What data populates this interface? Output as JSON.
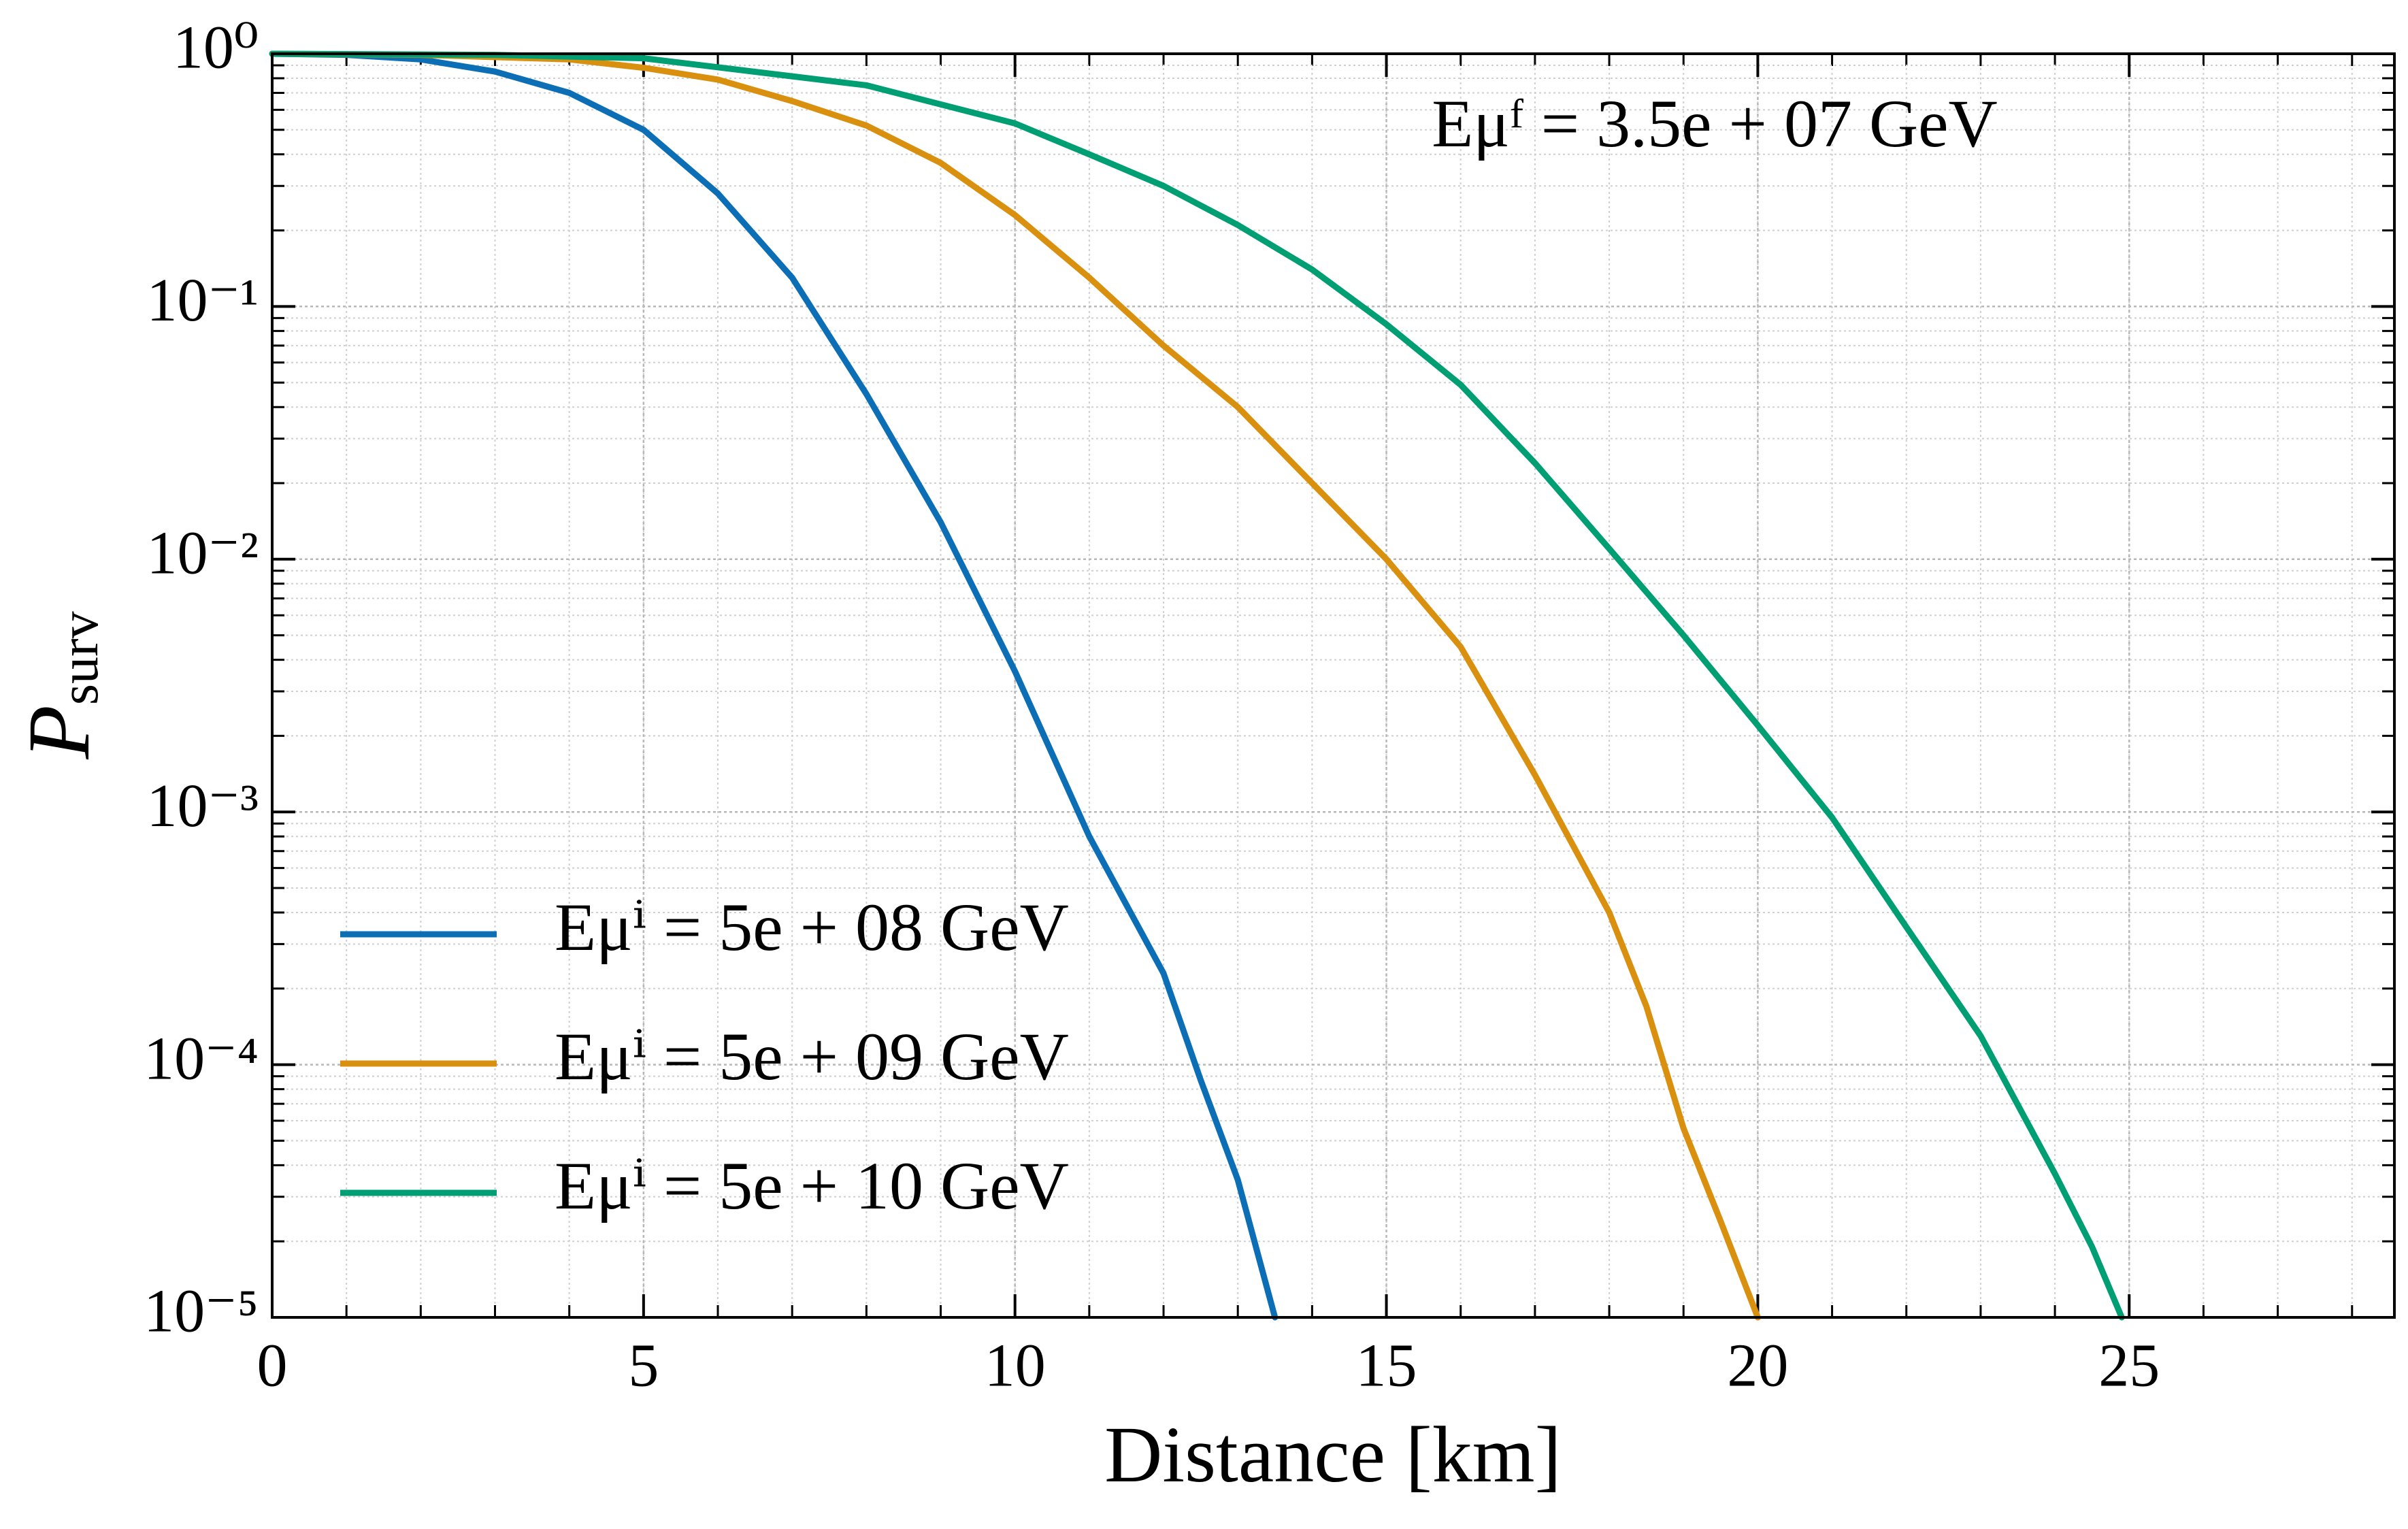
{
  "chart_data": {
    "type": "line",
    "annotation": "Eμᶠ = 3.5e + 07 GeV",
    "xlabel": "Distance [km]",
    "ylabel": "Psurv",
    "xlim": [
      0,
      28.57
    ],
    "xticks": [
      0,
      5,
      10,
      15,
      20,
      25
    ],
    "ylim": [
      1e-05,
      1
    ],
    "yticks": [
      {
        "value": 1,
        "label": "10⁰"
      },
      {
        "value": 0.1,
        "label": "10⁻¹"
      },
      {
        "value": 0.01,
        "label": "10⁻²"
      },
      {
        "value": 0.001,
        "label": "10⁻³"
      },
      {
        "value": 0.0001,
        "label": "10⁻⁴"
      },
      {
        "value": 1e-05,
        "label": "10⁻⁵"
      }
    ],
    "yscale": "log",
    "grid": true,
    "minor_grid": true,
    "legend": "lower left",
    "series": [
      {
        "name": "Eμⁱ = 5e + 08 GeV",
        "color": "#0c6fb5",
        "x": [
          0,
          1,
          2,
          3,
          4,
          5,
          6,
          7,
          8,
          9,
          10,
          11,
          12,
          12.5,
          13,
          13.5
        ],
        "values": [
          1,
          0.99,
          0.95,
          0.85,
          0.7,
          0.5,
          0.28,
          0.13,
          0.045,
          0.014,
          0.0036,
          0.0008,
          0.00023,
          8.7e-05,
          3.5e-05,
          1e-05
        ]
      },
      {
        "name": "Eμⁱ = 5e + 09 GeV",
        "color": "#d9900f",
        "x": [
          0,
          2,
          4,
          5,
          6,
          7,
          8,
          9,
          10,
          11,
          12,
          13,
          14,
          15,
          16,
          17,
          18,
          18.5,
          19,
          19.5,
          20
        ],
        "values": [
          1,
          0.99,
          0.95,
          0.88,
          0.79,
          0.65,
          0.52,
          0.37,
          0.23,
          0.13,
          0.07,
          0.04,
          0.02,
          0.01,
          0.0045,
          0.0014,
          0.0004,
          0.00017,
          5.6e-05,
          2.4e-05,
          1e-05
        ]
      },
      {
        "name": "Eμⁱ = 5e + 10 GeV",
        "color": "#009e73",
        "x": [
          0,
          3,
          5,
          8,
          10,
          11,
          12,
          13,
          14,
          15,
          16,
          17,
          18,
          19,
          20,
          21,
          22,
          23,
          24,
          24.5,
          24.9
        ],
        "values": [
          1,
          0.99,
          0.96,
          0.75,
          0.53,
          0.4,
          0.3,
          0.21,
          0.14,
          0.085,
          0.049,
          0.024,
          0.011,
          0.005,
          0.0022,
          0.00095,
          0.00035,
          0.00013,
          3.7e-05,
          1.9e-05,
          1e-05
        ]
      }
    ]
  }
}
